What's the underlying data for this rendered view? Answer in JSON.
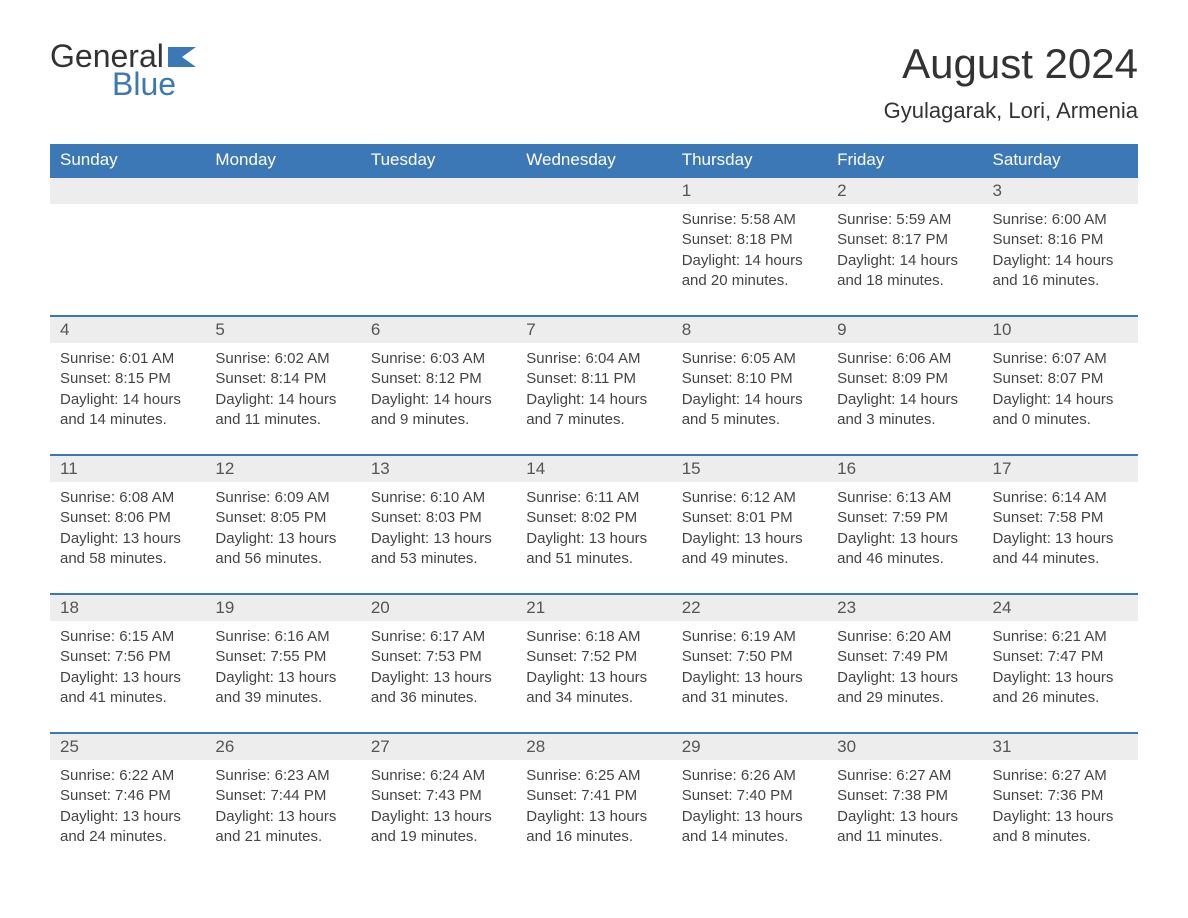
{
  "logo": {
    "text_top": "General",
    "text_bottom": "Blue",
    "flag_color": "#3b78b5"
  },
  "title": "August 2024",
  "location": "Gyulagarak, Lori, Armenia",
  "colors": {
    "header_bg": "#3b78b5",
    "header_text": "#ffffff",
    "daynum_bg": "#ededed",
    "row_border": "#3b78b5",
    "body_text": "#444444",
    "page_bg": "#ffffff"
  },
  "day_names": [
    "Sunday",
    "Monday",
    "Tuesday",
    "Wednesday",
    "Thursday",
    "Friday",
    "Saturday"
  ],
  "weeks": [
    [
      null,
      null,
      null,
      null,
      {
        "n": "1",
        "sr": "5:58 AM",
        "ss": "8:18 PM",
        "dl": "14 hours and 20 minutes."
      },
      {
        "n": "2",
        "sr": "5:59 AM",
        "ss": "8:17 PM",
        "dl": "14 hours and 18 minutes."
      },
      {
        "n": "3",
        "sr": "6:00 AM",
        "ss": "8:16 PM",
        "dl": "14 hours and 16 minutes."
      }
    ],
    [
      {
        "n": "4",
        "sr": "6:01 AM",
        "ss": "8:15 PM",
        "dl": "14 hours and 14 minutes."
      },
      {
        "n": "5",
        "sr": "6:02 AM",
        "ss": "8:14 PM",
        "dl": "14 hours and 11 minutes."
      },
      {
        "n": "6",
        "sr": "6:03 AM",
        "ss": "8:12 PM",
        "dl": "14 hours and 9 minutes."
      },
      {
        "n": "7",
        "sr": "6:04 AM",
        "ss": "8:11 PM",
        "dl": "14 hours and 7 minutes."
      },
      {
        "n": "8",
        "sr": "6:05 AM",
        "ss": "8:10 PM",
        "dl": "14 hours and 5 minutes."
      },
      {
        "n": "9",
        "sr": "6:06 AM",
        "ss": "8:09 PM",
        "dl": "14 hours and 3 minutes."
      },
      {
        "n": "10",
        "sr": "6:07 AM",
        "ss": "8:07 PM",
        "dl": "14 hours and 0 minutes."
      }
    ],
    [
      {
        "n": "11",
        "sr": "6:08 AM",
        "ss": "8:06 PM",
        "dl": "13 hours and 58 minutes."
      },
      {
        "n": "12",
        "sr": "6:09 AM",
        "ss": "8:05 PM",
        "dl": "13 hours and 56 minutes."
      },
      {
        "n": "13",
        "sr": "6:10 AM",
        "ss": "8:03 PM",
        "dl": "13 hours and 53 minutes."
      },
      {
        "n": "14",
        "sr": "6:11 AM",
        "ss": "8:02 PM",
        "dl": "13 hours and 51 minutes."
      },
      {
        "n": "15",
        "sr": "6:12 AM",
        "ss": "8:01 PM",
        "dl": "13 hours and 49 minutes."
      },
      {
        "n": "16",
        "sr": "6:13 AM",
        "ss": "7:59 PM",
        "dl": "13 hours and 46 minutes."
      },
      {
        "n": "17",
        "sr": "6:14 AM",
        "ss": "7:58 PM",
        "dl": "13 hours and 44 minutes."
      }
    ],
    [
      {
        "n": "18",
        "sr": "6:15 AM",
        "ss": "7:56 PM",
        "dl": "13 hours and 41 minutes."
      },
      {
        "n": "19",
        "sr": "6:16 AM",
        "ss": "7:55 PM",
        "dl": "13 hours and 39 minutes."
      },
      {
        "n": "20",
        "sr": "6:17 AM",
        "ss": "7:53 PM",
        "dl": "13 hours and 36 minutes."
      },
      {
        "n": "21",
        "sr": "6:18 AM",
        "ss": "7:52 PM",
        "dl": "13 hours and 34 minutes."
      },
      {
        "n": "22",
        "sr": "6:19 AM",
        "ss": "7:50 PM",
        "dl": "13 hours and 31 minutes."
      },
      {
        "n": "23",
        "sr": "6:20 AM",
        "ss": "7:49 PM",
        "dl": "13 hours and 29 minutes."
      },
      {
        "n": "24",
        "sr": "6:21 AM",
        "ss": "7:47 PM",
        "dl": "13 hours and 26 minutes."
      }
    ],
    [
      {
        "n": "25",
        "sr": "6:22 AM",
        "ss": "7:46 PM",
        "dl": "13 hours and 24 minutes."
      },
      {
        "n": "26",
        "sr": "6:23 AM",
        "ss": "7:44 PM",
        "dl": "13 hours and 21 minutes."
      },
      {
        "n": "27",
        "sr": "6:24 AM",
        "ss": "7:43 PM",
        "dl": "13 hours and 19 minutes."
      },
      {
        "n": "28",
        "sr": "6:25 AM",
        "ss": "7:41 PM",
        "dl": "13 hours and 16 minutes."
      },
      {
        "n": "29",
        "sr": "6:26 AM",
        "ss": "7:40 PM",
        "dl": "13 hours and 14 minutes."
      },
      {
        "n": "30",
        "sr": "6:27 AM",
        "ss": "7:38 PM",
        "dl": "13 hours and 11 minutes."
      },
      {
        "n": "31",
        "sr": "6:27 AM",
        "ss": "7:36 PM",
        "dl": "13 hours and 8 minutes."
      }
    ]
  ],
  "labels": {
    "sunrise": "Sunrise:",
    "sunset": "Sunset:",
    "daylight": "Daylight:"
  }
}
